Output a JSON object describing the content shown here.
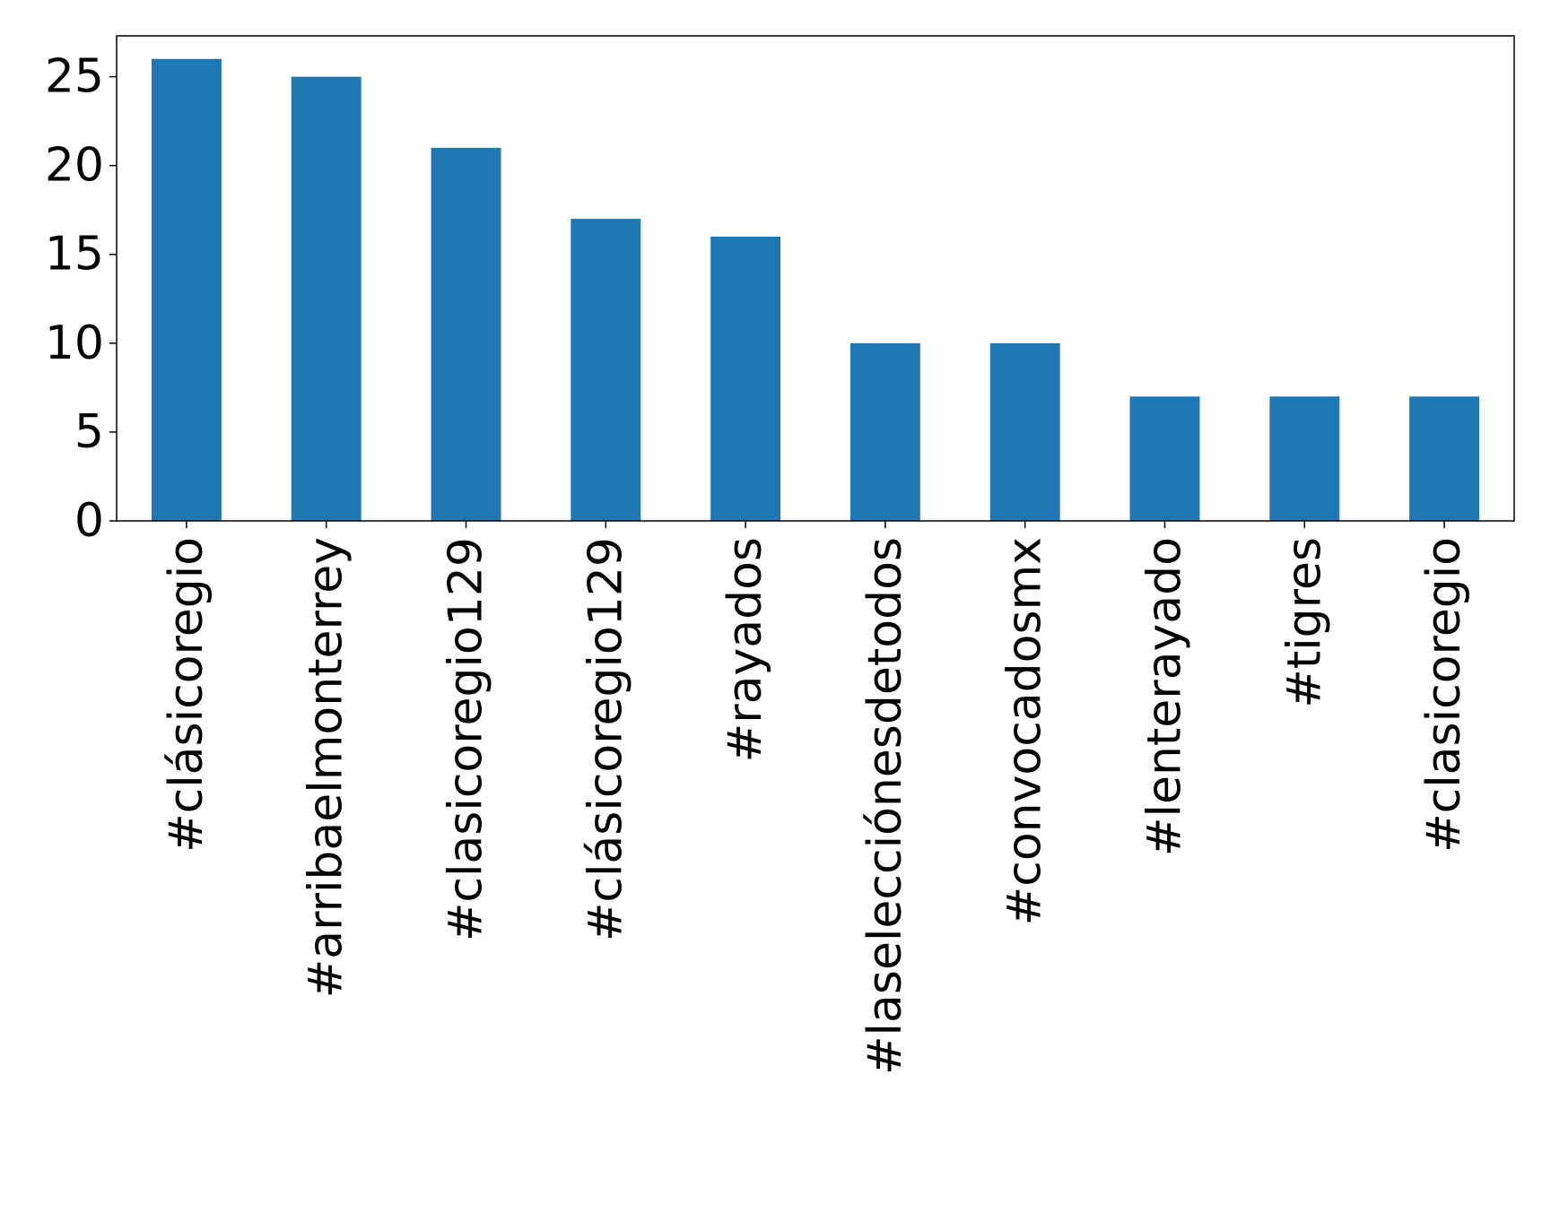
{
  "chart_data": {
    "type": "bar",
    "title": "",
    "xlabel": "",
    "ylabel": "",
    "categories": [
      "#clásicoregio",
      "#arribaelmonterrey",
      "#clasicoregio129",
      "#clásicoregio129",
      "#rayados",
      "#laselecciónesdetodos",
      "#convocadosmx",
      "#lenterayado",
      "#tigres",
      "#clasicoregio"
    ],
    "values": [
      26,
      25,
      21,
      17,
      16,
      10,
      10,
      7,
      7,
      7
    ],
    "yticks": [
      "0",
      "5",
      "10",
      "15",
      "20",
      "25"
    ],
    "ylim": [
      0,
      27.3
    ],
    "grid": false,
    "legend": "none",
    "bar_color": "#1f77b4"
  }
}
